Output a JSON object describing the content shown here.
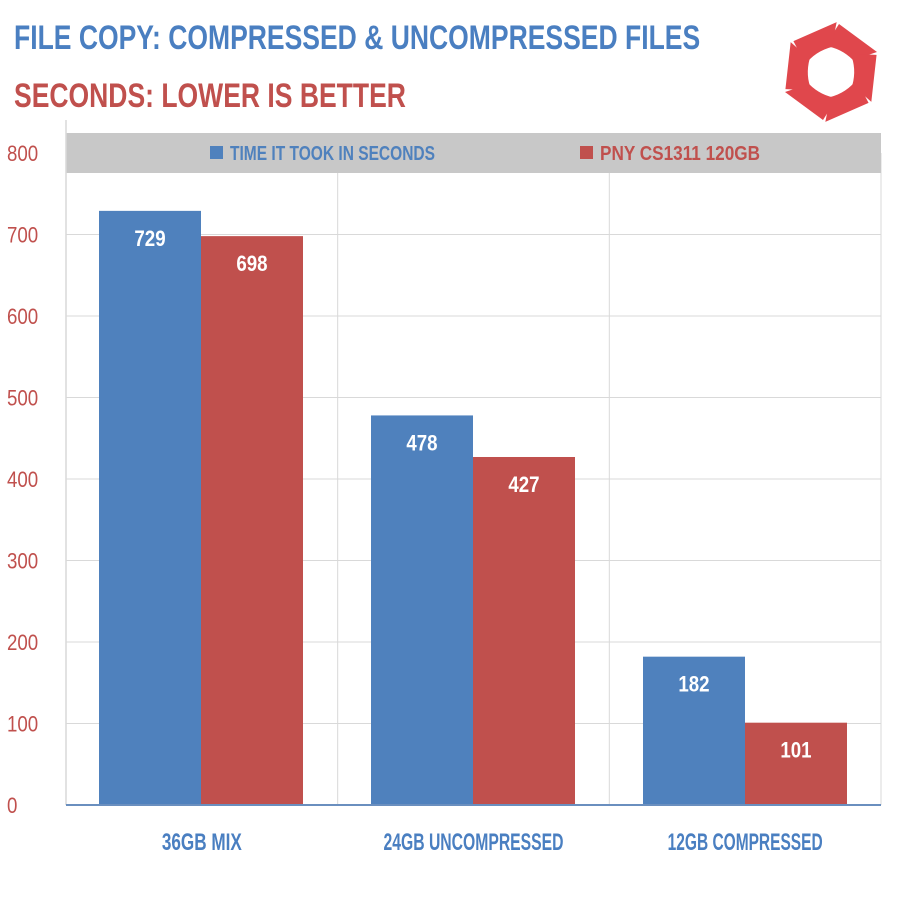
{
  "chart_data": {
    "type": "bar",
    "title": "FILE COPY: COMPRESSED & UNCOMPRESSED FILES",
    "subtitle": "SECONDS: LOWER IS BETTER",
    "categories": [
      "36GB MIX",
      "24GB UNCOMPRESSED",
      "12GB COMPRESSED"
    ],
    "series": [
      {
        "name": "TIME IT TOOK IN SECONDS",
        "values": [
          729,
          478,
          182
        ],
        "color": "#4f81bd"
      },
      {
        "name": "PNY CS1311 120GB",
        "values": [
          698,
          427,
          101
        ],
        "color": "#c0504d"
      }
    ],
    "ylim": [
      0,
      800
    ],
    "yticks": [
      "0",
      "100",
      "200",
      "300",
      "400",
      "500",
      "600",
      "700",
      "800"
    ],
    "xlabel": "",
    "ylabel": "",
    "grid": true,
    "legend_position": "top",
    "data_labels": true,
    "colors": {
      "title": "#4a7fc1",
      "subtitle": "#c0504d",
      "tick_label": "#c0504d",
      "category_label": "#4a7fc1",
      "legend_band": "#c8c8c8",
      "grid": "#d9d9d9",
      "axis": "#6a8fbf"
    }
  },
  "logo": {
    "icon": "aperture-icon",
    "color": "#e0474c"
  }
}
